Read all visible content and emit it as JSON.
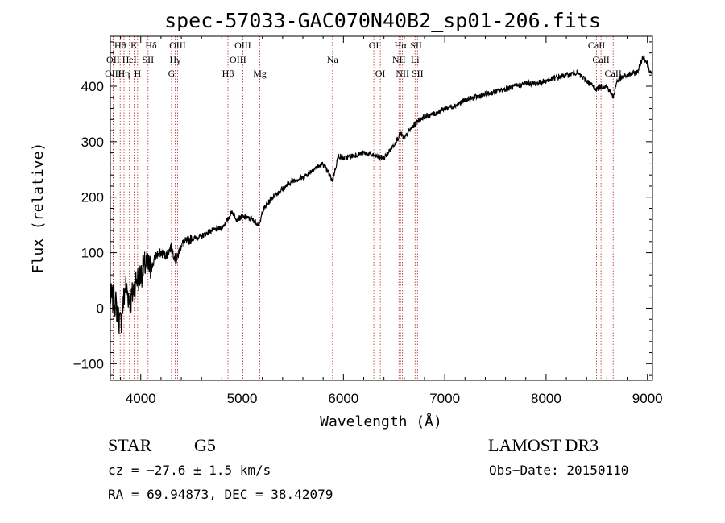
{
  "chart_data": {
    "type": "line",
    "title": "spec-57033-GAC070N40B2_sp01-206.fits",
    "xlabel": "Wavelength (Å)",
    "ylabel": "Flux (relative)",
    "xlim": [
      3700,
      9050
    ],
    "ylim": [
      -130,
      490
    ],
    "xticks": [
      4000,
      5000,
      6000,
      7000,
      8000,
      9000
    ],
    "yticks": [
      -100,
      0,
      100,
      200,
      300,
      400
    ],
    "series": [
      {
        "name": "flux",
        "x": [
          3700,
          3750,
          3800,
          3850,
          3900,
          3950,
          4000,
          4050,
          4100,
          4150,
          4200,
          4250,
          4300,
          4350,
          4400,
          4450,
          4500,
          4600,
          4700,
          4800,
          4860,
          4900,
          4950,
          5000,
          5100,
          5175,
          5200,
          5300,
          5400,
          5500,
          5600,
          5700,
          5800,
          5893,
          5950,
          6000,
          6100,
          6200,
          6300,
          6400,
          6500,
          6563,
          6600,
          6650,
          6700,
          6750,
          6800,
          6900,
          7000,
          7100,
          7200,
          7300,
          7400,
          7500,
          7600,
          7700,
          7800,
          7900,
          8000,
          8100,
          8200,
          8300,
          8400,
          8498,
          8542,
          8600,
          8662,
          8700,
          8800,
          8900,
          8960,
          9000,
          9040
        ],
        "y": [
          20,
          10,
          -30,
          40,
          10,
          50,
          60,
          80,
          70,
          95,
          100,
          95,
          110,
          85,
          115,
          120,
          125,
          130,
          140,
          145,
          160,
          175,
          160,
          165,
          160,
          150,
          175,
          200,
          215,
          230,
          235,
          250,
          260,
          230,
          275,
          270,
          275,
          280,
          275,
          270,
          295,
          315,
          305,
          320,
          330,
          340,
          345,
          350,
          360,
          365,
          375,
          380,
          385,
          390,
          395,
          400,
          405,
          405,
          410,
          415,
          420,
          425,
          410,
          395,
          400,
          400,
          380,
          410,
          420,
          425,
          455,
          440,
          420
        ]
      }
    ],
    "lines": [
      {
        "name": "OII",
        "x": 3727,
        "row": 1
      },
      {
        "name": "OIII",
        "x": 3727,
        "row": 2
      },
      {
        "name": "Hθ",
        "x": 3797,
        "row": 0
      },
      {
        "name": "Hη",
        "x": 3835,
        "row": 2
      },
      {
        "name": "HeI",
        "x": 3889,
        "row": 1
      },
      {
        "name": "K",
        "x": 3934,
        "row": 0
      },
      {
        "name": "H",
        "x": 3969,
        "row": 2
      },
      {
        "name": "SII",
        "x": 4072,
        "row": 1
      },
      {
        "name": "Hδ",
        "x": 4102,
        "row": 0
      },
      {
        "name": "G",
        "x": 4304,
        "row": 2
      },
      {
        "name": "Hγ",
        "x": 4340,
        "row": 1
      },
      {
        "name": "OIII",
        "x": 4363,
        "row": 0
      },
      {
        "name": "Hβ",
        "x": 4861,
        "row": 2
      },
      {
        "name": "OIII",
        "x": 4959,
        "row": 1
      },
      {
        "name": "OIII",
        "x": 5007,
        "row": 0
      },
      {
        "name": "Mg",
        "x": 5175,
        "row": 2
      },
      {
        "name": "Na",
        "x": 5893,
        "row": 1
      },
      {
        "name": "OI",
        "x": 6300,
        "row": 0
      },
      {
        "name": "OI",
        "x": 6364,
        "row": 2
      },
      {
        "name": "NII",
        "x": 6548,
        "row": 1
      },
      {
        "name": "Hα",
        "x": 6563,
        "row": 0
      },
      {
        "name": "NII",
        "x": 6583,
        "row": 2
      },
      {
        "name": "Li",
        "x": 6707,
        "row": 1
      },
      {
        "name": "SII",
        "x": 6717,
        "row": 0
      },
      {
        "name": "SII",
        "x": 6731,
        "row": 2
      },
      {
        "name": "CaII",
        "x": 8498,
        "row": 0
      },
      {
        "name": "CaII",
        "x": 8542,
        "row": 1
      },
      {
        "name": "CaII",
        "x": 8662,
        "row": 2
      }
    ]
  },
  "info": {
    "object_class": "STAR",
    "subclass": "G5",
    "survey": "LAMOST DR3",
    "redshift": "cz = −27.6 ± 1.5 km/s",
    "obs_date": "Obs−Date: 20150110",
    "coords": "RA =  69.94873, DEC =  38.42079"
  }
}
